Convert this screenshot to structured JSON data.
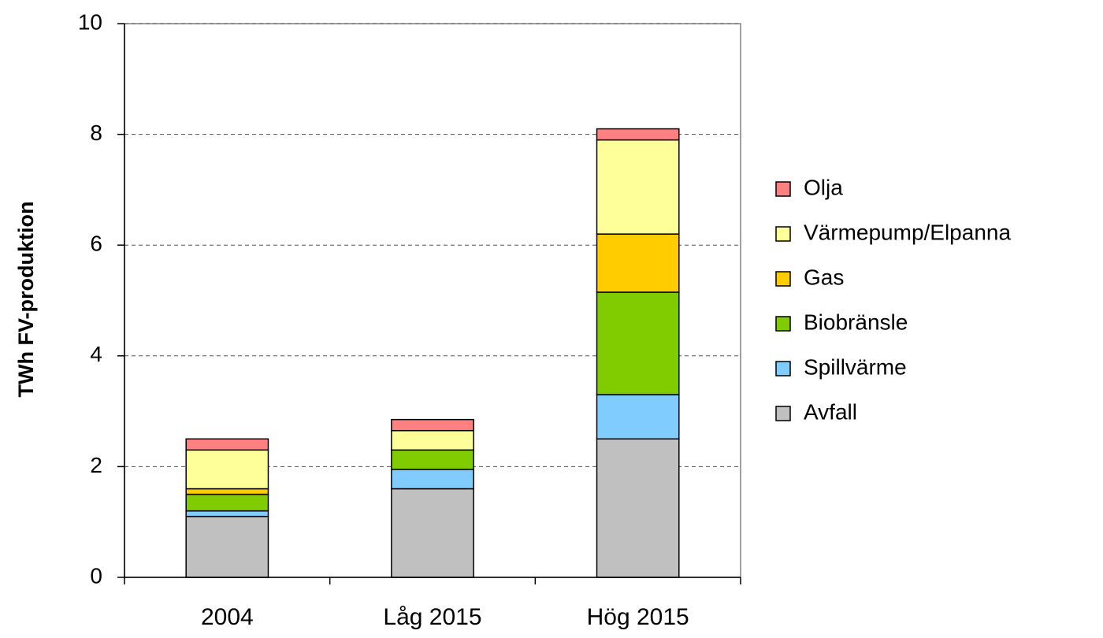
{
  "chart_data": {
    "type": "stacked_bar",
    "y_label": "TWh FV-produktion",
    "categories": [
      "2004",
      "Låg 2015",
      "Hög 2015"
    ],
    "series": [
      {
        "name": "Avfall",
        "color": "#c0c0c0",
        "values": [
          1.1,
          1.6,
          2.5
        ]
      },
      {
        "name": "Spillvärme",
        "color": "#80ccff",
        "values": [
          0.1,
          0.35,
          0.8
        ]
      },
      {
        "name": "Biobränsle",
        "color": "#80cc00",
        "values": [
          0.3,
          0.35,
          1.85
        ]
      },
      {
        "name": "Gas",
        "color": "#ffcc00",
        "values": [
          0.1,
          0,
          1.05
        ]
      },
      {
        "name": "Värmepump/Elpanna",
        "color": "#ffff99",
        "values": [
          0.7,
          0.35,
          1.7
        ]
      },
      {
        "name": "Olja",
        "color": "#ff8080",
        "values": [
          0.2,
          0.2,
          0.2
        ]
      }
    ],
    "ylim": [
      0,
      10
    ],
    "yticks": [
      0,
      2,
      4,
      6,
      8,
      10
    ],
    "grid": true,
    "legend": "right"
  }
}
